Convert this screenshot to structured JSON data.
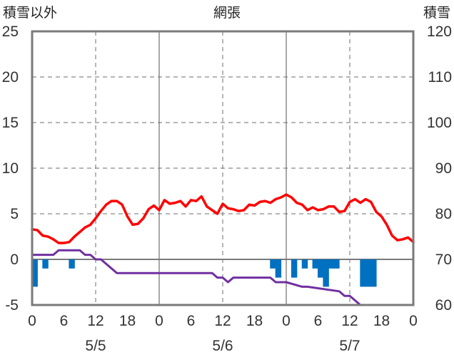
{
  "chart_data": {
    "type": "line",
    "title": "網張",
    "left_axis_label": "積雪以外",
    "right_axis_label": "積雪",
    "left_axis": {
      "range": [
        -5,
        25
      ],
      "ticks": [
        "25",
        "20",
        "15",
        "10",
        "5",
        "0",
        "-5"
      ]
    },
    "right_axis": {
      "range": [
        60,
        120
      ],
      "ticks": [
        "120",
        "110",
        "100",
        "90",
        "80",
        "70",
        "60"
      ]
    },
    "x_range_hours": [
      0,
      72
    ],
    "x_tick_labels": [
      "0",
      "6",
      "12",
      "18",
      "0",
      "6",
      "12",
      "18",
      "0",
      "6",
      "12",
      "18",
      "0"
    ],
    "date_labels": [
      {
        "text": "5/5",
        "hour": 12
      },
      {
        "text": "5/6",
        "hour": 36
      },
      {
        "text": "5/7",
        "hour": 60
      }
    ],
    "grid": true,
    "series": [
      {
        "id": "temperature",
        "axis": "left",
        "color": "#ff0000",
        "kind": "line",
        "x": [
          0,
          1,
          2,
          3,
          4,
          5,
          6,
          7,
          8,
          9,
          10,
          11,
          12,
          13,
          14,
          15,
          16,
          17,
          18,
          19,
          20,
          21,
          22,
          23,
          24,
          25,
          26,
          27,
          28,
          29,
          30,
          31,
          32,
          33,
          34,
          35,
          36,
          37,
          38,
          39,
          40,
          41,
          42,
          43,
          44,
          45,
          46,
          47,
          48,
          49,
          50,
          51,
          52,
          53,
          54,
          55,
          56,
          57,
          58,
          59,
          60,
          61,
          62,
          63,
          64,
          65,
          66,
          67,
          68,
          69,
          70,
          71,
          72
        ],
        "values": [
          3.3,
          3.2,
          2.6,
          2.5,
          2.2,
          1.8,
          1.8,
          1.9,
          2.5,
          3.0,
          3.5,
          3.8,
          4.5,
          5.3,
          6.0,
          6.4,
          6.4,
          6.0,
          4.7,
          3.8,
          3.9,
          4.5,
          5.5,
          5.9,
          5.4,
          6.5,
          6.1,
          6.2,
          6.4,
          5.8,
          6.5,
          6.4,
          6.9,
          5.8,
          5.4,
          5.0,
          6.1,
          5.6,
          5.5,
          5.3,
          5.4,
          6.0,
          5.9,
          6.3,
          6.4,
          6.2,
          6.6,
          6.8,
          7.1,
          6.8,
          6.2,
          6.0,
          5.4,
          5.7,
          5.4,
          5.5,
          5.8,
          5.8,
          5.2,
          5.3,
          6.3,
          6.6,
          6.2,
          6.6,
          6.3,
          5.2,
          4.7,
          3.8,
          2.6,
          2.1,
          2.2,
          2.4,
          1.9
        ]
      },
      {
        "id": "snow_depth",
        "axis": "right",
        "color": "#7030a0",
        "kind": "line",
        "x": [
          0,
          4,
          5,
          9,
          10,
          11,
          12,
          13,
          14,
          15,
          16,
          34,
          35,
          36,
          37,
          38,
          45,
          46,
          48,
          51,
          52,
          58,
          59,
          60,
          61,
          62,
          63,
          72
        ],
        "values": [
          71,
          71,
          72,
          72,
          71,
          71,
          70,
          70,
          69,
          68,
          67,
          67,
          66,
          66,
          65,
          66,
          66,
          65,
          65,
          64,
          64,
          63,
          62,
          62,
          61,
          60,
          60,
          60
        ]
      },
      {
        "id": "precipitation",
        "axis": "left",
        "color": "#0070c0",
        "kind": "bar",
        "x": [
          0,
          2,
          7,
          45,
          46,
          49,
          51,
          53,
          54,
          55,
          56,
          57,
          62,
          63,
          64
        ],
        "values": [
          -3,
          -1,
          -1,
          -1,
          -2,
          -2,
          -1,
          -1,
          -2,
          -3,
          -1,
          -1,
          -3,
          -3,
          -3
        ]
      }
    ]
  }
}
